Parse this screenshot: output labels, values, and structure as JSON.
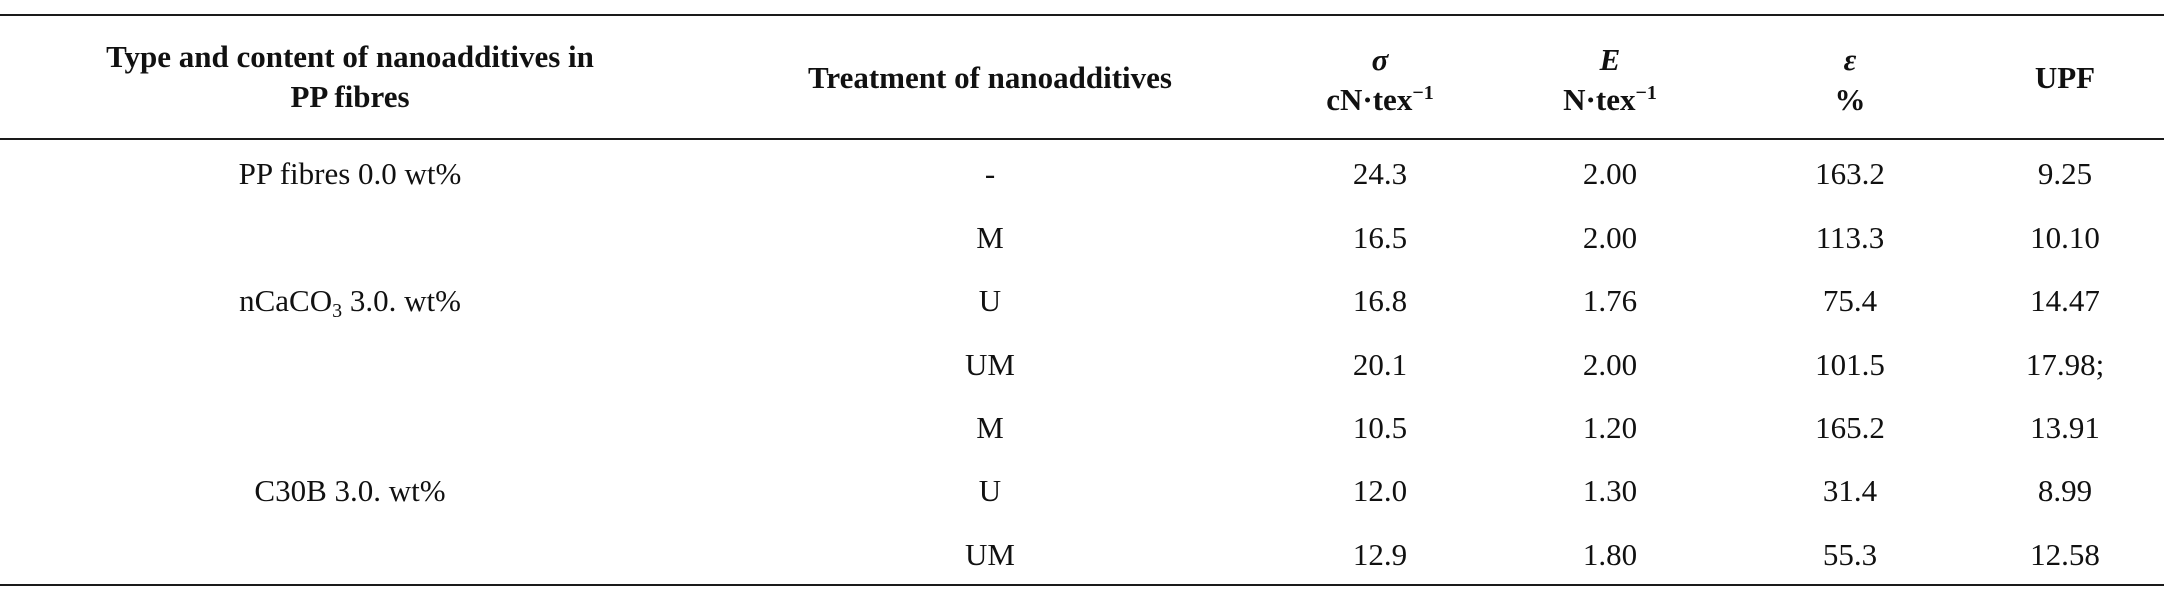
{
  "table": {
    "headers": {
      "type_line1": "Type and content of nanoadditives in",
      "type_line2": "PP fibres",
      "treatment": "Treatment of nanoadditives",
      "sigma_symbol": "σ",
      "sigma_unit_base": "cN·tex",
      "sigma_unit_exp": "−1",
      "E_symbol": "E",
      "E_unit_base": "N·tex",
      "E_unit_exp": "−1",
      "eps_symbol": "ε",
      "eps_unit": "%",
      "upf": "UPF"
    },
    "groups": {
      "pp": "PP fibres 0.0 wt%",
      "caco3_pre": "nCaCO",
      "caco3_sub": "3",
      "caco3_post": " 3.0. wt%",
      "c30b": "C30B 3.0. wt%"
    },
    "rows": [
      {
        "treatment": "-",
        "sigma": "24.3",
        "E": "2.00",
        "eps": "163.2",
        "upf": "9.25"
      },
      {
        "treatment": "M",
        "sigma": "16.5",
        "E": "2.00",
        "eps": "113.3",
        "upf": "10.10"
      },
      {
        "treatment": "U",
        "sigma": "16.8",
        "E": "1.76",
        "eps": "75.4",
        "upf": "14.47"
      },
      {
        "treatment": "UM",
        "sigma": "20.1",
        "E": "2.00",
        "eps": "101.5",
        "upf": "17.98;"
      },
      {
        "treatment": "M",
        "sigma": "10.5",
        "E": "1.20",
        "eps": "165.2",
        "upf": "13.91"
      },
      {
        "treatment": "U",
        "sigma": "12.0",
        "E": "1.30",
        "eps": "31.4",
        "upf": "8.99"
      },
      {
        "treatment": "UM",
        "sigma": "12.9",
        "E": "1.80",
        "eps": "55.3",
        "upf": "12.58"
      }
    ]
  }
}
